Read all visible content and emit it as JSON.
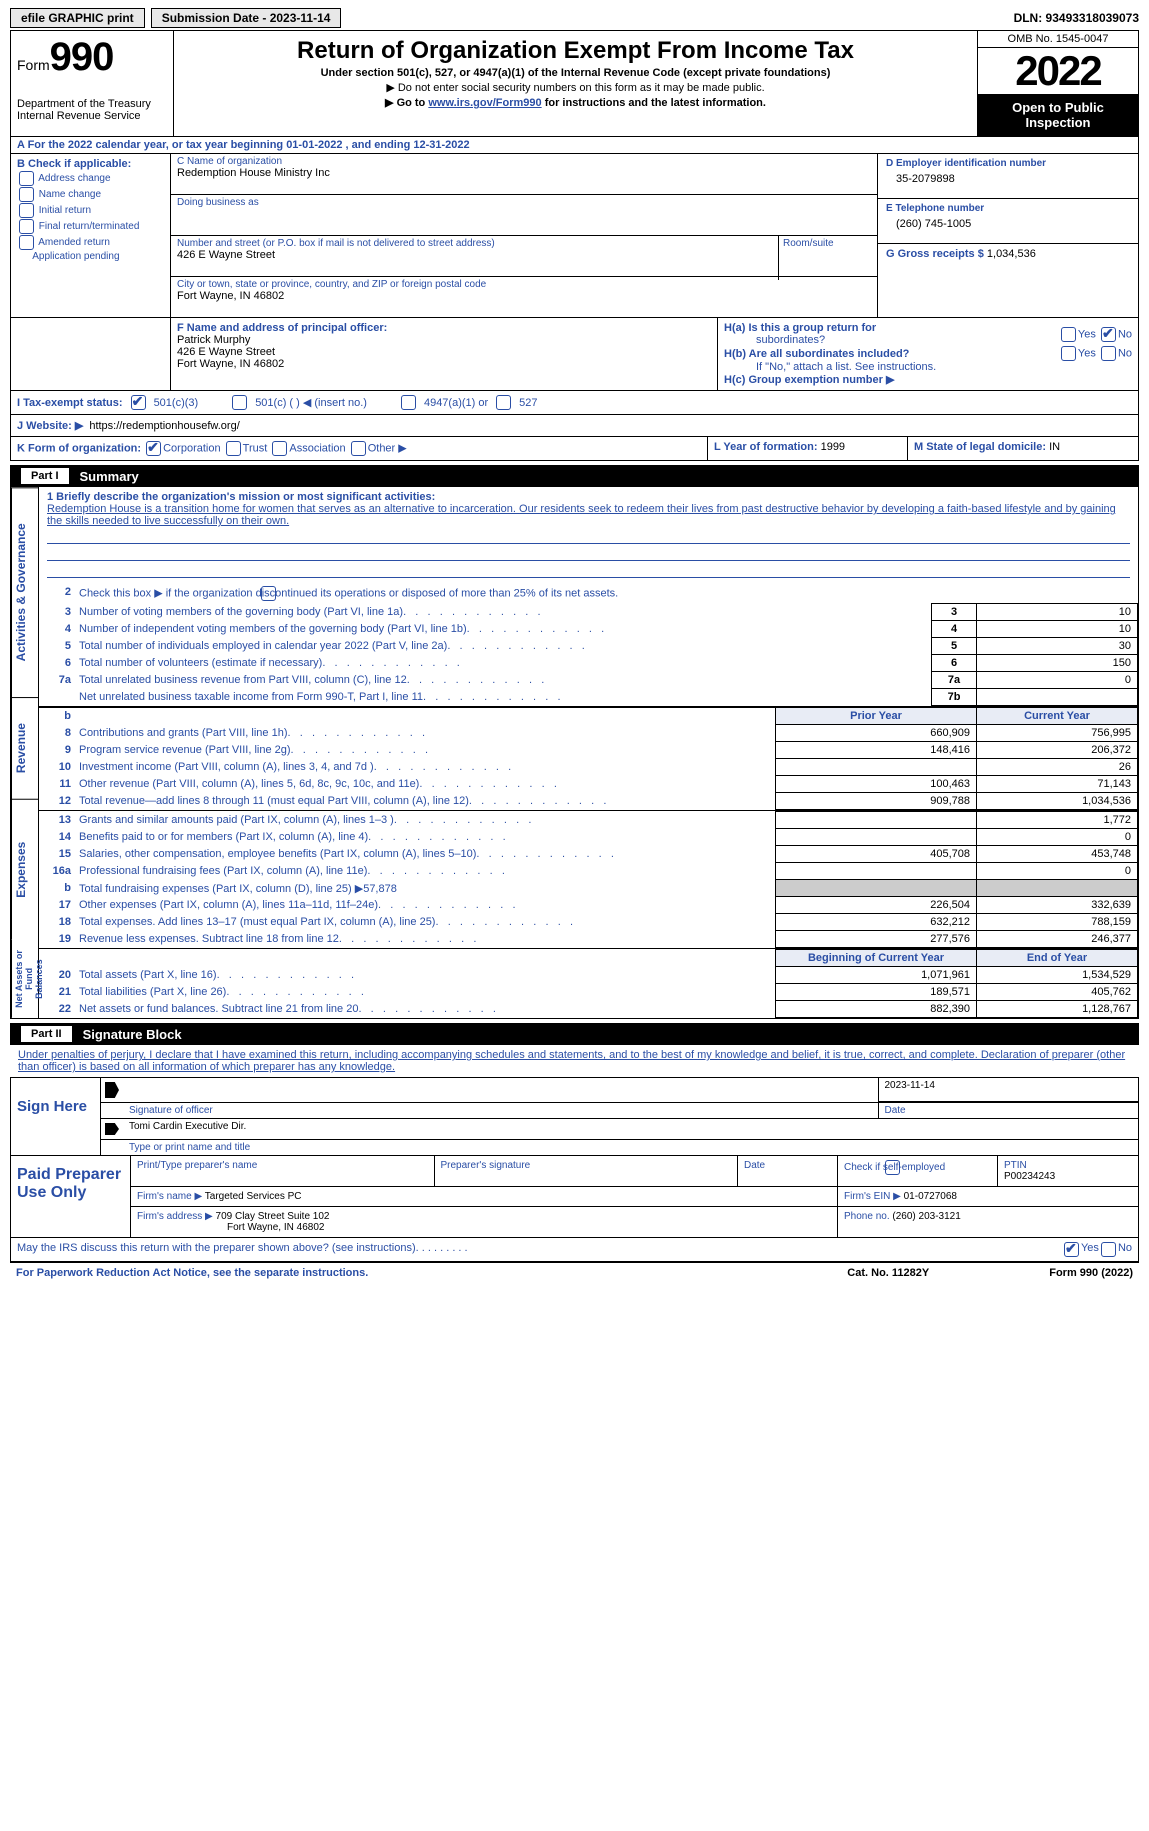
{
  "colors": {
    "link_blue": "#2a4ea5",
    "black": "#000000",
    "grey_cell": "#cccccc",
    "header_cell_bg": "#e8ecf5",
    "button_bg": "#e8e8e8"
  },
  "topbar": {
    "efile": "efile GRAPHIC print",
    "submission": "Submission Date - 2023-11-14",
    "dln": "DLN: 93493318039073"
  },
  "header": {
    "form_word": "Form",
    "form_num": "990",
    "dept": "Department of the Treasury",
    "irs": "Internal Revenue Service",
    "title": "Return of Organization Exempt From Income Tax",
    "sub": "Under section 501(c), 527, or 4947(a)(1) of the Internal Revenue Code (except private foundations)",
    "note1": "▶ Do not enter social security numbers on this form as it may be made public.",
    "note2_pre": "▶ Go to ",
    "note2_link": "www.irs.gov/Form990",
    "note2_post": " for instructions and the latest information.",
    "omb": "OMB No. 1545-0047",
    "year": "2022",
    "open": "Open to Public Inspection"
  },
  "sectionA": "A   For the 2022 calendar year, or tax year beginning 01-01-2022    , and ending 12-31-2022",
  "boxB": {
    "label": "B Check if applicable:",
    "items": [
      "Address change",
      "Name change",
      "Initial return",
      "Final return/terminated",
      "Amended return",
      "Application pending"
    ]
  },
  "boxC": {
    "nameLabel": "C Name of organization",
    "name": "Redemption House Ministry Inc",
    "dbaLabel": "Doing business as",
    "streetLabel": "Number and street (or P.O. box if mail is not delivered to street address)",
    "street": "426 E Wayne Street",
    "roomLabel": "Room/suite",
    "cityLabel": "City or town, state or province, country, and ZIP or foreign postal code",
    "city": "Fort Wayne, IN  46802"
  },
  "boxD": {
    "label": "D Employer identification number",
    "value": "35-2079898"
  },
  "boxE": {
    "label": "E Telephone number",
    "value": "(260) 745-1005"
  },
  "boxG": {
    "label": "G Gross receipts $",
    "value": "1,034,536"
  },
  "boxF": {
    "label": "F Name and address of principal officer:",
    "name": "Patrick Murphy",
    "street": "426 E Wayne Street",
    "city": "Fort Wayne, IN  46802"
  },
  "boxH": {
    "a_label": "H(a)  Is this a group return for",
    "a_label2": "subordinates?",
    "b_label": "H(b)  Are all subordinates included?",
    "b_note": "If \"No,\" attach a list. See instructions.",
    "c_label": "H(c)  Group exemption number ▶",
    "yes": "Yes",
    "no": "No"
  },
  "boxI": {
    "label": "I    Tax-exempt status:",
    "opt1": "501(c)(3)",
    "opt2": "501(c) (  ) ◀ (insert no.)",
    "opt3": "4947(a)(1) or",
    "opt4": "527"
  },
  "boxJ": {
    "label": "J   Website: ▶",
    "value": "https://redemptionhousefw.org/"
  },
  "boxK": {
    "label": "K Form of organization:",
    "o1": "Corporation",
    "o2": "Trust",
    "o3": "Association",
    "o4": "Other ▶"
  },
  "boxL": {
    "label": "L Year of formation:",
    "value": "1999"
  },
  "boxM": {
    "label": "M State of legal domicile:",
    "value": "IN"
  },
  "part1": {
    "header": "Part I",
    "title": "Summary",
    "side1": "Activities & Governance",
    "side2": "Revenue",
    "side3": "Expenses",
    "side4": "Net Assets or Fund Balances",
    "line1": "1   Briefly describe the organization's mission or most significant activities:",
    "mission": "Redemption House is a transition home for women that serves as an alternative to incarceration. Our residents seek to redeem their lives from past destructive behavior by developing a faith-based lifestyle and by gaining the skills needed to live successfully on their own.",
    "line2": "Check this box ▶          if the organization discontinued its operations or disposed of more than 25% of its net assets.",
    "rows_gov": [
      {
        "n": "3",
        "text": "Number of voting members of the governing body (Part VI, line 1a)",
        "box": "3",
        "val": "10"
      },
      {
        "n": "4",
        "text": "Number of independent voting members of the governing body (Part VI, line 1b)",
        "box": "4",
        "val": "10"
      },
      {
        "n": "5",
        "text": "Total number of individuals employed in calendar year 2022 (Part V, line 2a)",
        "box": "5",
        "val": "30"
      },
      {
        "n": "6",
        "text": "Total number of volunteers (estimate if necessary)",
        "box": "6",
        "val": "150"
      },
      {
        "n": "7a",
        "text": "Total unrelated business revenue from Part VIII, column (C), line 12",
        "box": "7a",
        "val": "0"
      },
      {
        "n": "",
        "text": "Net unrelated business taxable income from Form 990-T, Part I, line 11",
        "box": "7b",
        "val": ""
      }
    ],
    "col_prior": "Prior Year",
    "col_current": "Current Year",
    "rows_rev": [
      {
        "n": "8",
        "text": "Contributions and grants (Part VIII, line 1h)",
        "prior": "660,909",
        "curr": "756,995"
      },
      {
        "n": "9",
        "text": "Program service revenue (Part VIII, line 2g)",
        "prior": "148,416",
        "curr": "206,372"
      },
      {
        "n": "10",
        "text": "Investment income (Part VIII, column (A), lines 3, 4, and 7d )",
        "prior": "",
        "curr": "26"
      },
      {
        "n": "11",
        "text": "Other revenue (Part VIII, column (A), lines 5, 6d, 8c, 9c, 10c, and 11e)",
        "prior": "100,463",
        "curr": "71,143"
      },
      {
        "n": "12",
        "text": "Total revenue—add lines 8 through 11 (must equal Part VIII, column (A), line 12)",
        "prior": "909,788",
        "curr": "1,034,536"
      }
    ],
    "rows_exp": [
      {
        "n": "13",
        "text": "Grants and similar amounts paid (Part IX, column (A), lines 1–3 )",
        "prior": "",
        "curr": "1,772"
      },
      {
        "n": "14",
        "text": "Benefits paid to or for members (Part IX, column (A), line 4)",
        "prior": "",
        "curr": "0"
      },
      {
        "n": "15",
        "text": "Salaries, other compensation, employee benefits (Part IX, column (A), lines 5–10)",
        "prior": "405,708",
        "curr": "453,748"
      },
      {
        "n": "16a",
        "text": "Professional fundraising fees (Part IX, column (A), line 11e)",
        "prior": "",
        "curr": "0"
      },
      {
        "n": "b",
        "text": "Total fundraising expenses (Part IX, column (D), line 25) ▶57,878",
        "grey": true
      },
      {
        "n": "17",
        "text": "Other expenses (Part IX, column (A), lines 11a–11d, 11f–24e)",
        "prior": "226,504",
        "curr": "332,639"
      },
      {
        "n": "18",
        "text": "Total expenses. Add lines 13–17 (must equal Part IX, column (A), line 25)",
        "prior": "632,212",
        "curr": "788,159"
      },
      {
        "n": "19",
        "text": "Revenue less expenses. Subtract line 18 from line 12",
        "prior": "277,576",
        "curr": "246,377"
      }
    ],
    "col_begin": "Beginning of Current Year",
    "col_end": "End of Year",
    "rows_net": [
      {
        "n": "20",
        "text": "Total assets (Part X, line 16)",
        "prior": "1,071,961",
        "curr": "1,534,529"
      },
      {
        "n": "21",
        "text": "Total liabilities (Part X, line 26)",
        "prior": "189,571",
        "curr": "405,762"
      },
      {
        "n": "22",
        "text": "Net assets or fund balances. Subtract line 21 from line 20",
        "prior": "882,390",
        "curr": "1,128,767"
      }
    ]
  },
  "part2": {
    "header": "Part II",
    "title": "Signature Block",
    "declaration": "Under penalties of perjury, I declare that I have examined this return, including accompanying schedules and statements, and to the best of my knowledge and belief, it is true, correct, and complete. Declaration of preparer (other than officer) is based on all information of which preparer has any knowledge.",
    "sign_here": "Sign Here",
    "sig_officer": "Signature of officer",
    "sig_date_val": "2023-11-14",
    "sig_date": "Date",
    "officer_name": "Tomi Cardin  Executive Dir.",
    "officer_type": "Type or print name and title",
    "paid": "Paid Preparer Use Only",
    "prep_name_label": "Print/Type preparer's name",
    "prep_sig_label": "Preparer's signature",
    "prep_date_label": "Date",
    "check_self": "Check          if self-employed",
    "ptin_label": "PTIN",
    "ptin": "P00234243",
    "firm_name_label": "Firm's name    ▶",
    "firm_name": "Targeted Services PC",
    "firm_ein_label": "Firm's EIN ▶",
    "firm_ein": "01-0727068",
    "firm_addr_label": "Firm's address ▶",
    "firm_addr1": "709 Clay Street Suite 102",
    "firm_addr2": "Fort Wayne, IN  46802",
    "phone_label": "Phone no.",
    "phone": "(260) 203-3121",
    "may_irs": "May the IRS discuss this return with the preparer shown above? (see instructions)",
    "yes": "Yes",
    "no": "No"
  },
  "footer": {
    "left": "For Paperwork Reduction Act Notice, see the separate instructions.",
    "mid": "Cat. No. 11282Y",
    "right": "Form 990 (2022)"
  }
}
